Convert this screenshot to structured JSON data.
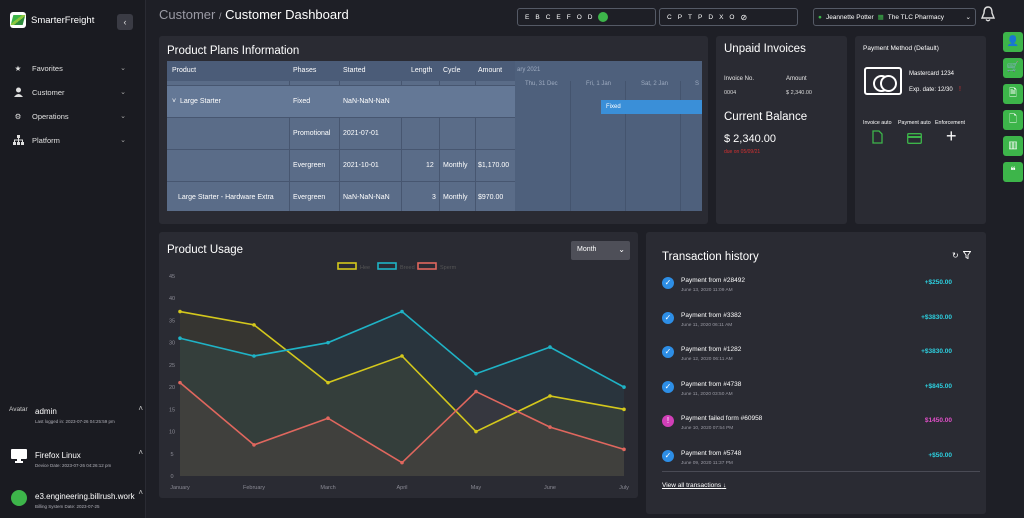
{
  "app": {
    "name": "SmarterFreight",
    "collapse_icon": "chevron-left-icon"
  },
  "sidebar": {
    "items": [
      {
        "label": "Favorites",
        "icon": "star-icon"
      },
      {
        "label": "Customer",
        "icon": "user-icon"
      },
      {
        "label": "Operations",
        "icon": "gears-icon"
      },
      {
        "label": "Platform",
        "icon": "sitemap-icon"
      }
    ],
    "avatar_label": "Avatar",
    "user": {
      "name": "admin",
      "sub": "Last logged in: 2023-07-26 04:25:59 pm"
    },
    "device": {
      "name": "Firefox Linux",
      "sub": "Device Date: 2023-07-26 04:26:12 pm"
    },
    "server": {
      "name": "e3.engineering.billrush.work",
      "sub": "Billing System Date: 2023-07-25"
    }
  },
  "header": {
    "breadcrumb_parent": "Customer",
    "breadcrumb_sep": "/",
    "title": "Customer Dashboard",
    "pill1": [
      "E",
      "B",
      "C",
      "E",
      "F",
      "O",
      "D"
    ],
    "pill2": [
      "C",
      "P",
      "T",
      "P",
      "D",
      "X",
      "O"
    ],
    "user_name": "Jeannette Potter",
    "org_name": "The TLC Pharmacy"
  },
  "plans": {
    "title": "Product Plans Information",
    "columns": [
      "Product",
      "Phases",
      "Started",
      "Length",
      "Cycle",
      "Amount"
    ],
    "gantt_header": [
      "ary 2021",
      "Thu, 31 Dec",
      "Fri, 1 Jan",
      "Sat, 2 Jan",
      "S"
    ],
    "gantt_bar": "Fixed",
    "rows": [
      {
        "product": "Large Starter",
        "phase": "Fixed",
        "started": "NaN-NaN-NaN",
        "length": "",
        "cycle": "",
        "amount": ""
      },
      {
        "product": "",
        "phase": "Promotional",
        "started": "2021-07-01",
        "length": "",
        "cycle": "",
        "amount": ""
      },
      {
        "product": "",
        "phase": "Evergreen",
        "started": "2021-10-01",
        "length": "12",
        "cycle": "Monthly",
        "amount": "$1,170.00"
      },
      {
        "product": "Large Starter - Hardware Extra",
        "phase": "Evergreen",
        "started": "NaN-NaN-NaN",
        "length": "3",
        "cycle": "Monthly",
        "amount": "$970.00"
      }
    ]
  },
  "unpaid": {
    "title": "Unpaid Invoices",
    "col_invoice": "Invoice No.",
    "col_amount": "Amount",
    "invoice_no": "0004",
    "amount": "$ 2,340.00",
    "balance_title": "Current Balance",
    "balance": "$ 2,340.00",
    "balance_note": "due on 05/09/21"
  },
  "payment": {
    "title": "Payment Method (Default)",
    "card_name": "Mastercard 1234",
    "exp": "Exp. date: 12/30",
    "labels": [
      "Invoice auto",
      "Payment auto",
      "Enforcement"
    ]
  },
  "usage": {
    "title": "Product Usage",
    "period": "Month"
  },
  "chart_data": {
    "type": "area",
    "categories": [
      "January",
      "February",
      "March",
      "April",
      "May",
      "June",
      "July"
    ],
    "series": [
      {
        "name": "Hee",
        "color": "#d4c81c",
        "values": [
          37,
          34,
          21,
          27,
          10,
          18,
          15
        ]
      },
      {
        "name": "Breed",
        "color": "#1fb3c6",
        "values": [
          31,
          27,
          30,
          37,
          23,
          29,
          20
        ]
      },
      {
        "name": "Sperm",
        "color": "#e0675e",
        "values": [
          21,
          7,
          13,
          3,
          19,
          11,
          6
        ]
      }
    ],
    "yticks": [
      0,
      5,
      10,
      15,
      20,
      25,
      30,
      35,
      40,
      45
    ],
    "ylim": [
      0,
      45
    ]
  },
  "transactions": {
    "title": "Transaction history",
    "items": [
      {
        "title": "Payment from #28492",
        "date": "June 13, 2020 11:09 AM",
        "amount": "+$250.00",
        "failed": false
      },
      {
        "title": "Payment from #3382",
        "date": "June 11, 2020 06:11 AM",
        "amount": "+$3830.00",
        "failed": false
      },
      {
        "title": "Payment from #1282",
        "date": "June 12, 2020 06:11 AM",
        "amount": "+$3830.00",
        "failed": false
      },
      {
        "title": "Payment from #4738",
        "date": "June 11, 2020 03:50 AM",
        "amount": "+$845.00",
        "failed": false
      },
      {
        "title": "Payment failed form #60958",
        "date": "June 10, 2020 07:54 PM",
        "amount": "$1450.00",
        "failed": true
      },
      {
        "title": "Payment from #5748",
        "date": "June 09, 2020 11:37 PM",
        "amount": "+$50.00",
        "failed": false
      }
    ],
    "view_all": "View all transactions"
  },
  "rail": [
    "add-user-icon",
    "cart-icon",
    "file-plus-icon",
    "file-gear-icon",
    "chart-icon",
    "quote-icon"
  ]
}
